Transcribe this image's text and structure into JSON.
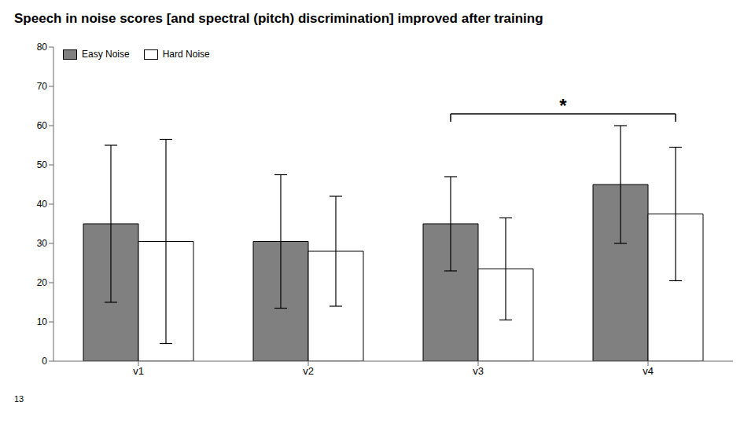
{
  "chart_data": {
    "type": "bar",
    "title": "Speech in noise scores [and spectral (pitch) discrimination] improved after training",
    "categories": [
      "v1",
      "v2",
      "v3",
      "v4"
    ],
    "series": [
      {
        "name": "Easy Noise",
        "color": "#808080",
        "values": [
          35,
          30.5,
          35,
          45
        ],
        "errors": [
          20,
          17,
          12,
          15
        ]
      },
      {
        "name": "Hard Noise",
        "color": "#ffffff",
        "values": [
          30.5,
          28,
          23.5,
          37.5
        ],
        "errors": [
          26,
          14,
          13,
          17
        ]
      }
    ],
    "ylim": [
      0,
      80
    ],
    "yticks": [
      0,
      10,
      20,
      30,
      40,
      50,
      60,
      70,
      80
    ],
    "grid": false,
    "legend": "upper left",
    "annotations": [
      {
        "text": "*",
        "from": "v3",
        "to": "v4",
        "y": 63
      },
      {
        "text": "13"
      }
    ]
  }
}
